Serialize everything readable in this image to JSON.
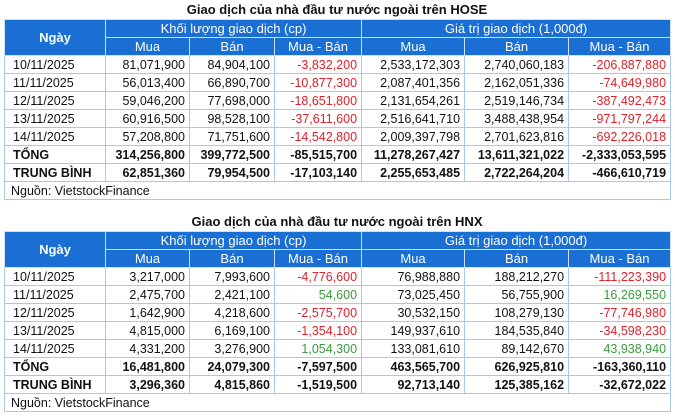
{
  "colors": {
    "header_bg": "#1a6fd4",
    "negative": "#e0202a",
    "positive": "#3a9a3a"
  },
  "headers": {
    "date": "Ngày",
    "volume": "Khối lượng giao dịch (cp)",
    "value": "Giá trị giao dịch (1,000đ)",
    "buy": "Mua",
    "sell": "Bán",
    "net": "Mua - Bán"
  },
  "tables": [
    {
      "title": "Giao dịch của nhà đầu tư nước ngoài trên HOSE",
      "rows": [
        [
          "10/11/2025",
          "81,071,900",
          "84,904,100",
          "-3,832,200",
          "2,533,172,303",
          "2,740,060,183",
          "-206,887,880"
        ],
        [
          "11/11/2025",
          "56,013,400",
          "66,890,700",
          "-10,877,300",
          "2,087,401,356",
          "2,162,051,336",
          "-74,649,980"
        ],
        [
          "12/11/2025",
          "59,046,200",
          "77,698,000",
          "-18,651,800",
          "2,131,654,261",
          "2,519,146,734",
          "-387,492,473"
        ],
        [
          "13/11/2025",
          "60,916,500",
          "98,528,100",
          "-37,611,600",
          "2,516,641,710",
          "3,488,438,954",
          "-971,797,244"
        ],
        [
          "14/11/2025",
          "57,208,800",
          "71,751,600",
          "-14,542,800",
          "2,009,397,798",
          "2,701,623,816",
          "-692,226,018"
        ],
        [
          "TỔNG",
          "314,256,800",
          "399,772,500",
          "-85,515,700",
          "11,278,267,427",
          "13,611,321,022",
          "-2,333,053,595"
        ],
        [
          "TRUNG BÌNH",
          "62,851,360",
          "79,954,500",
          "-17,103,140",
          "2,255,653,485",
          "2,722,264,204",
          "-466,610,719"
        ]
      ],
      "source": "Nguồn: VietstockFinance"
    },
    {
      "title": "Giao dịch của nhà đầu tư nước ngoài trên HNX",
      "rows": [
        [
          "10/11/2025",
          "3,217,000",
          "7,993,600",
          "-4,776,600",
          "76,988,880",
          "188,212,270",
          "-111,223,390"
        ],
        [
          "11/11/2025",
          "2,475,700",
          "2,421,100",
          "54,600",
          "73,025,450",
          "56,755,900",
          "16,269,550"
        ],
        [
          "12/11/2025",
          "1,642,900",
          "4,218,600",
          "-2,575,700",
          "30,532,150",
          "108,279,130",
          "-77,746,980"
        ],
        [
          "13/11/2025",
          "4,815,000",
          "6,169,100",
          "-1,354,100",
          "149,937,610",
          "184,535,840",
          "-34,598,230"
        ],
        [
          "14/11/2025",
          "4,331,200",
          "3,276,900",
          "1,054,300",
          "133,081,610",
          "89,142,670",
          "43,938,940"
        ],
        [
          "TỔNG",
          "16,481,800",
          "24,079,300",
          "-7,597,500",
          "463,565,700",
          "626,925,810",
          "-163,360,110"
        ],
        [
          "TRUNG BÌNH",
          "3,296,360",
          "4,815,860",
          "-1,519,500",
          "92,713,140",
          "125,385,162",
          "-32,672,022"
        ]
      ],
      "source": "Nguồn: VietstockFinance"
    }
  ]
}
